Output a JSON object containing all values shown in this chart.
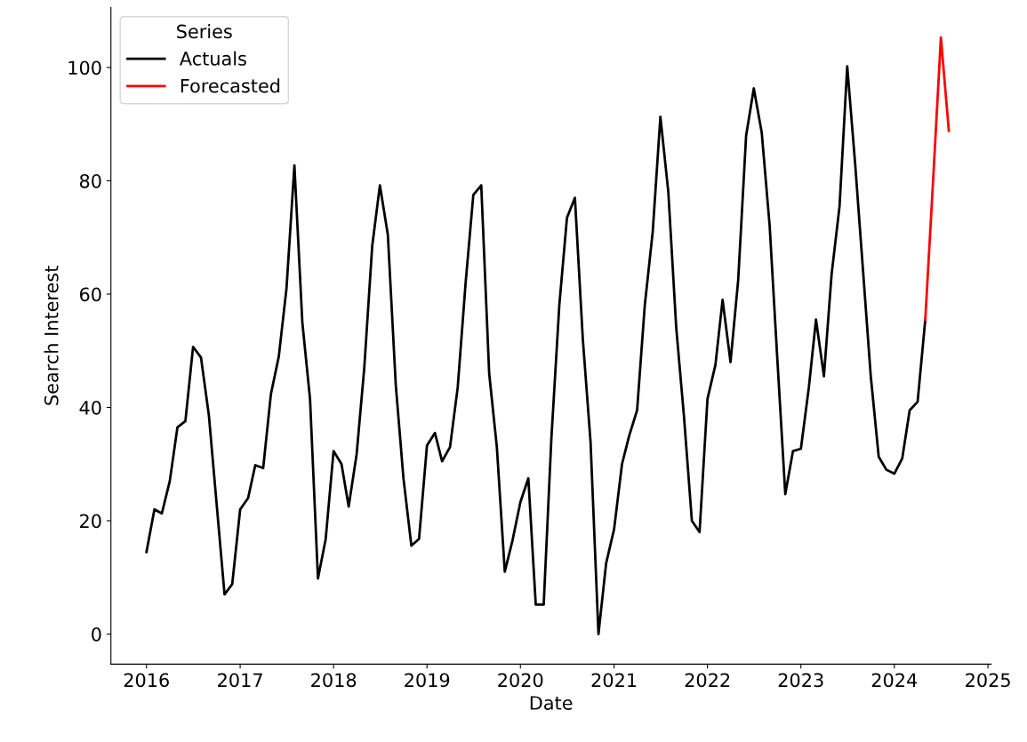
{
  "chart_data": {
    "type": "line",
    "xlabel": "Date",
    "ylabel": "Search Interest",
    "legend_title": "Series",
    "legend": "top left",
    "grid": false,
    "marker": "none",
    "line_style": "solid",
    "xlim": [
      "2015-08-15",
      "2025-01-13"
    ],
    "ylim": [
      -5.3,
      110.6
    ],
    "xticks": [
      {
        "value": "2016-01-01",
        "label": "2016"
      },
      {
        "value": "2017-01-01",
        "label": "2017"
      },
      {
        "value": "2018-01-01",
        "label": "2018"
      },
      {
        "value": "2019-01-01",
        "label": "2019"
      },
      {
        "value": "2020-01-01",
        "label": "2020"
      },
      {
        "value": "2021-01-01",
        "label": "2021"
      },
      {
        "value": "2022-01-01",
        "label": "2022"
      },
      {
        "value": "2023-01-01",
        "label": "2023"
      },
      {
        "value": "2024-01-01",
        "label": "2024"
      },
      {
        "value": "2025-01-01",
        "label": "2025"
      }
    ],
    "yticks": [
      0,
      20,
      40,
      60,
      80,
      100
    ],
    "series": [
      {
        "name": "Actuals",
        "color": "#000000",
        "x": [
          "2016-01",
          "2016-02",
          "2016-03",
          "2016-04",
          "2016-05",
          "2016-06",
          "2016-07",
          "2016-08",
          "2016-09",
          "2016-10",
          "2016-11",
          "2016-12",
          "2017-01",
          "2017-02",
          "2017-03",
          "2017-04",
          "2017-05",
          "2017-06",
          "2017-07",
          "2017-08",
          "2017-09",
          "2017-10",
          "2017-11",
          "2017-12",
          "2018-01",
          "2018-02",
          "2018-03",
          "2018-04",
          "2018-05",
          "2018-06",
          "2018-07",
          "2018-08",
          "2018-09",
          "2018-10",
          "2018-11",
          "2018-12",
          "2019-01",
          "2019-02",
          "2019-03",
          "2019-04",
          "2019-05",
          "2019-06",
          "2019-07",
          "2019-08",
          "2019-09",
          "2019-10",
          "2019-11",
          "2019-12",
          "2020-01",
          "2020-02",
          "2020-03",
          "2020-04",
          "2020-05",
          "2020-06",
          "2020-07",
          "2020-08",
          "2020-09",
          "2020-10",
          "2020-11",
          "2020-12",
          "2021-01",
          "2021-02",
          "2021-03",
          "2021-04",
          "2021-05",
          "2021-06",
          "2021-07",
          "2021-08",
          "2021-09",
          "2021-10",
          "2021-11",
          "2021-12",
          "2022-01",
          "2022-02",
          "2022-03",
          "2022-04",
          "2022-05",
          "2022-06",
          "2022-07",
          "2022-08",
          "2022-09",
          "2022-10",
          "2022-11",
          "2022-12",
          "2023-01",
          "2023-02",
          "2023-03",
          "2023-04",
          "2023-05",
          "2023-06",
          "2023-07",
          "2023-08",
          "2023-09",
          "2023-10",
          "2023-11",
          "2023-12",
          "2024-01",
          "2024-02",
          "2024-03",
          "2024-04",
          "2024-05"
        ],
        "values": [
          14.5,
          22,
          21.3,
          27,
          36.5,
          37.6,
          50.7,
          48.8,
          38.5,
          23,
          7,
          8.8,
          22,
          24,
          29.8,
          29.3,
          42.3,
          49,
          61,
          82.7,
          55,
          41.5,
          9.8,
          16.7,
          32.3,
          30,
          22.5,
          31.7,
          47,
          68.5,
          79.2,
          70.5,
          44,
          27.5,
          15.6,
          16.8,
          33.3,
          35.5,
          30.5,
          33,
          43.5,
          62,
          77.5,
          79.2,
          46,
          33,
          11,
          16.5,
          23.3,
          27.5,
          5.2,
          5.2,
          34.5,
          58,
          73.5,
          77,
          52,
          34,
          0,
          12.5,
          18.5,
          30,
          35,
          39.5,
          58,
          71,
          91.3,
          78,
          54,
          38.5,
          20,
          18,
          41.5,
          47.5,
          59,
          48,
          62.5,
          88,
          96.3,
          88.5,
          72,
          48.5,
          24.7,
          32.3,
          32.7,
          43.5,
          55.5,
          45.5,
          63.5,
          75.5,
          100.2,
          83,
          64,
          45.5,
          31.3,
          29,
          28.3,
          31,
          39.5,
          41,
          55.5
        ]
      },
      {
        "name": "Forecasted",
        "color": "#ff0000",
        "x": [
          "2024-05",
          "2024-06",
          "2024-07",
          "2024-08"
        ],
        "values": [
          55.5,
          80.4,
          105.3,
          88.8
        ]
      }
    ]
  }
}
